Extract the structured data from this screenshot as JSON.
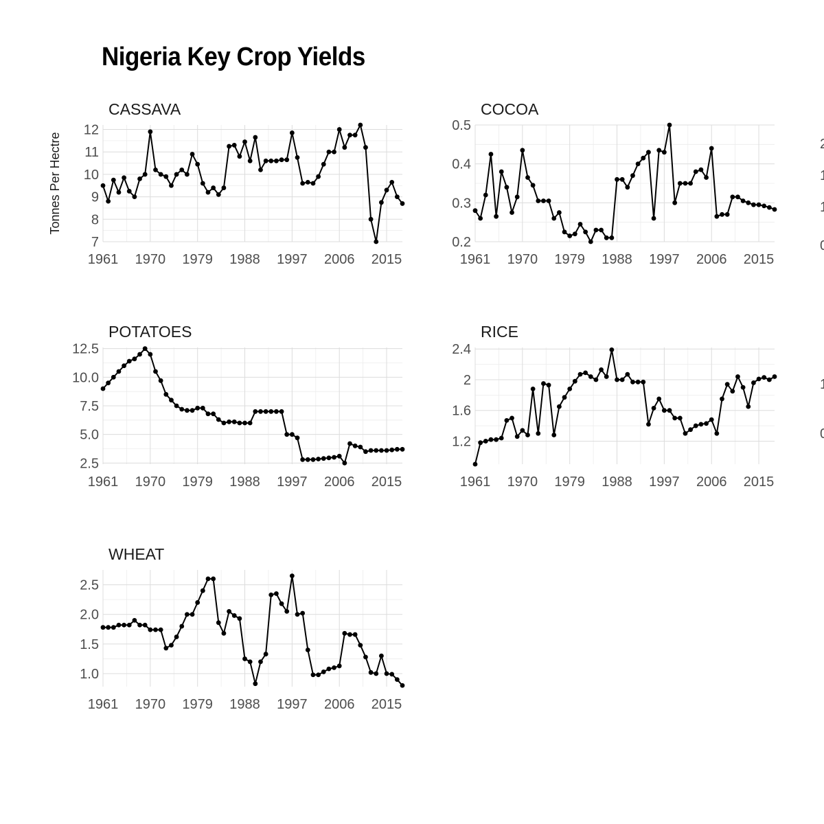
{
  "title": "Nigeria Key Crop Yields",
  "chart_data": [
    {
      "type": "line",
      "panel": "CASSAVA",
      "ylabel": "Tonnes Per Hectre",
      "xticks": [
        1961,
        1970,
        1979,
        1988,
        1997,
        2006,
        2015
      ],
      "yticks": [
        7,
        8,
        9,
        10,
        11,
        12
      ],
      "xlim": [
        1961,
        2018
      ],
      "ylim": [
        7,
        12.2
      ],
      "x": [
        1961,
        1962,
        1963,
        1964,
        1965,
        1966,
        1967,
        1968,
        1969,
        1970,
        1971,
        1972,
        1973,
        1974,
        1975,
        1976,
        1977,
        1978,
        1979,
        1980,
        1981,
        1982,
        1983,
        1984,
        1985,
        1986,
        1987,
        1988,
        1989,
        1990,
        1991,
        1992,
        1993,
        1994,
        1995,
        1996,
        1997,
        1998,
        1999,
        2000,
        2001,
        2002,
        2003,
        2004,
        2005,
        2006,
        2007,
        2008,
        2009,
        2010,
        2011,
        2012,
        2013,
        2014,
        2015,
        2016,
        2017,
        2018
      ],
      "y": [
        9.5,
        8.8,
        9.75,
        9.2,
        9.85,
        9.25,
        9.0,
        9.8,
        10.0,
        11.9,
        10.2,
        10.0,
        9.9,
        9.5,
        10.0,
        10.2,
        10.0,
        10.9,
        10.45,
        9.6,
        9.2,
        9.4,
        9.1,
        9.4,
        11.25,
        11.3,
        10.8,
        11.45,
        10.6,
        11.65,
        10.2,
        10.6,
        10.6,
        10.6,
        10.65,
        10.65,
        11.85,
        10.75,
        9.6,
        9.65,
        9.6,
        9.9,
        10.45,
        11.0,
        11.0,
        12.0,
        11.2,
        11.75,
        11.75,
        12.2,
        11.2,
        8.0,
        7.0,
        8.75,
        9.3,
        9.65,
        9.0,
        8.7
      ]
    },
    {
      "type": "line",
      "panel": "COCOA",
      "ylabel": "",
      "xticks": [
        1961,
        1970,
        1979,
        1988,
        1997,
        2006,
        2015
      ],
      "yticks": [
        0.2,
        0.3,
        0.4,
        0.5
      ],
      "xlim": [
        1961,
        2018
      ],
      "ylim": [
        0.2,
        0.5
      ],
      "x": [
        1961,
        1962,
        1963,
        1964,
        1965,
        1966,
        1967,
        1968,
        1969,
        1970,
        1971,
        1972,
        1973,
        1974,
        1975,
        1976,
        1977,
        1978,
        1979,
        1980,
        1981,
        1982,
        1983,
        1984,
        1985,
        1986,
        1987,
        1988,
        1989,
        1990,
        1991,
        1992,
        1993,
        1994,
        1995,
        1996,
        1997,
        1998,
        1999,
        2000,
        2001,
        2002,
        2003,
        2004,
        2005,
        2006,
        2007,
        2008,
        2009,
        2010,
        2011,
        2012,
        2013,
        2014,
        2015,
        2016,
        2017,
        2018
      ],
      "y": [
        0.28,
        0.26,
        0.32,
        0.425,
        0.265,
        0.38,
        0.34,
        0.275,
        0.315,
        0.435,
        0.365,
        0.345,
        0.305,
        0.305,
        0.305,
        0.26,
        0.275,
        0.225,
        0.215,
        0.22,
        0.245,
        0.225,
        0.2,
        0.23,
        0.23,
        0.21,
        0.21,
        0.36,
        0.36,
        0.34,
        0.37,
        0.4,
        0.415,
        0.43,
        0.26,
        0.435,
        0.43,
        0.5,
        0.3,
        0.35,
        0.35,
        0.35,
        0.38,
        0.385,
        0.365,
        0.44,
        0.265,
        0.27,
        0.27,
        0.315,
        0.315,
        0.305,
        0.3,
        0.295,
        0.295,
        0.292,
        0.288,
        0.283
      ]
    },
    {
      "type": "line",
      "panel": "POTATOES",
      "ylabel": "",
      "xticks": [
        1961,
        1970,
        1979,
        1988,
        1997,
        2006,
        2015
      ],
      "yticks": [
        2.5,
        5.0,
        7.5,
        10.0,
        12.5
      ],
      "ytick_labels": [
        "2.5",
        "5.0",
        "7.5",
        "10.0",
        "12.5"
      ],
      "xlim": [
        1961,
        2018
      ],
      "ylim": [
        2.4,
        12.6
      ],
      "x": [
        1961,
        1962,
        1963,
        1964,
        1965,
        1966,
        1967,
        1968,
        1969,
        1970,
        1971,
        1972,
        1973,
        1974,
        1975,
        1976,
        1977,
        1978,
        1979,
        1980,
        1981,
        1982,
        1983,
        1984,
        1985,
        1986,
        1987,
        1988,
        1989,
        1990,
        1991,
        1992,
        1993,
        1994,
        1995,
        1996,
        1997,
        1998,
        1999,
        2000,
        2001,
        2002,
        2003,
        2004,
        2005,
        2006,
        2007,
        2008,
        2009,
        2010,
        2011,
        2012,
        2013,
        2014,
        2015,
        2016,
        2017,
        2018
      ],
      "y": [
        9.0,
        9.5,
        10.0,
        10.5,
        11.0,
        11.4,
        11.6,
        12.0,
        12.5,
        12.0,
        10.5,
        9.7,
        8.5,
        8.0,
        7.5,
        7.2,
        7.1,
        7.1,
        7.3,
        7.3,
        6.8,
        6.8,
        6.3,
        6.0,
        6.1,
        6.1,
        6.0,
        6.0,
        6.0,
        7.0,
        7.0,
        7.0,
        7.0,
        7.0,
        7.0,
        5.0,
        5.0,
        4.7,
        2.8,
        2.8,
        2.8,
        2.85,
        2.9,
        2.95,
        3.0,
        3.1,
        2.5,
        4.2,
        4.0,
        3.9,
        3.5,
        3.6,
        3.6,
        3.6,
        3.6,
        3.65,
        3.7,
        3.7
      ]
    },
    {
      "type": "line",
      "panel": "RICE",
      "ylabel": "",
      "xticks": [
        1961,
        1970,
        1979,
        1988,
        1997,
        2006,
        2015
      ],
      "yticks": [
        1.2,
        1.6,
        2.0,
        2.4
      ],
      "xlim": [
        1961,
        2018
      ],
      "ylim": [
        0.9,
        2.42
      ],
      "x": [
        1961,
        1962,
        1963,
        1964,
        1965,
        1966,
        1967,
        1968,
        1969,
        1970,
        1971,
        1972,
        1973,
        1974,
        1975,
        1976,
        1977,
        1978,
        1979,
        1980,
        1981,
        1982,
        1983,
        1984,
        1985,
        1986,
        1987,
        1988,
        1989,
        1990,
        1991,
        1992,
        1993,
        1994,
        1995,
        1996,
        1997,
        1998,
        1999,
        2000,
        2001,
        2002,
        2003,
        2004,
        2005,
        2006,
        2007,
        2008,
        2009,
        2010,
        2011,
        2012,
        2013,
        2014,
        2015,
        2016,
        2017,
        2018
      ],
      "y": [
        0.9,
        1.18,
        1.2,
        1.22,
        1.22,
        1.24,
        1.47,
        1.5,
        1.26,
        1.34,
        1.28,
        1.88,
        1.3,
        1.95,
        1.93,
        1.28,
        1.65,
        1.77,
        1.88,
        1.98,
        2.07,
        2.09,
        2.04,
        2.0,
        2.13,
        2.04,
        2.39,
        2.0,
        2.0,
        2.07,
        1.97,
        1.97,
        1.97,
        1.42,
        1.63,
        1.75,
        1.6,
        1.6,
        1.5,
        1.5,
        1.3,
        1.35,
        1.4,
        1.42,
        1.43,
        1.48,
        1.3,
        1.75,
        1.94,
        1.85,
        2.04,
        1.9,
        1.65,
        1.96,
        2.01,
        2.03,
        2.0,
        2.04
      ]
    },
    {
      "type": "line",
      "panel": "WHEAT",
      "ylabel": "",
      "xticks": [
        1961,
        1970,
        1979,
        1988,
        1997,
        2006,
        2015
      ],
      "yticks": [
        1.0,
        1.5,
        2.0,
        2.5
      ],
      "ytick_labels": [
        "1.0",
        "1.5",
        "2.0",
        "2.5"
      ],
      "xlim": [
        1961,
        2018
      ],
      "ylim": [
        0.78,
        2.75
      ],
      "x": [
        1961,
        1962,
        1963,
        1964,
        1965,
        1966,
        1967,
        1968,
        1969,
        1970,
        1971,
        1972,
        1973,
        1974,
        1975,
        1976,
        1977,
        1978,
        1979,
        1980,
        1981,
        1982,
        1983,
        1984,
        1985,
        1986,
        1987,
        1988,
        1989,
        1990,
        1991,
        1992,
        1993,
        1994,
        1995,
        1996,
        1997,
        1998,
        1999,
        2000,
        2001,
        2002,
        2003,
        2004,
        2005,
        2006,
        2007,
        2008,
        2009,
        2010,
        2011,
        2012,
        2013,
        2014,
        2015,
        2016,
        2017,
        2018
      ],
      "y": [
        1.78,
        1.78,
        1.78,
        1.82,
        1.82,
        1.82,
        1.9,
        1.82,
        1.82,
        1.74,
        1.74,
        1.74,
        1.43,
        1.48,
        1.62,
        1.8,
        2.0,
        2.0,
        2.2,
        2.4,
        2.6,
        2.6,
        1.86,
        1.68,
        2.05,
        1.98,
        1.93,
        1.25,
        1.2,
        0.83,
        1.2,
        1.33,
        2.33,
        2.35,
        2.18,
        2.05,
        2.65,
        2.0,
        2.02,
        1.4,
        0.98,
        0.98,
        1.03,
        1.08,
        1.1,
        1.13,
        1.68,
        1.66,
        1.66,
        1.48,
        1.28,
        1.02,
        1.0,
        1.3,
        1.0,
        0.99,
        0.9,
        0.8
      ]
    }
  ]
}
